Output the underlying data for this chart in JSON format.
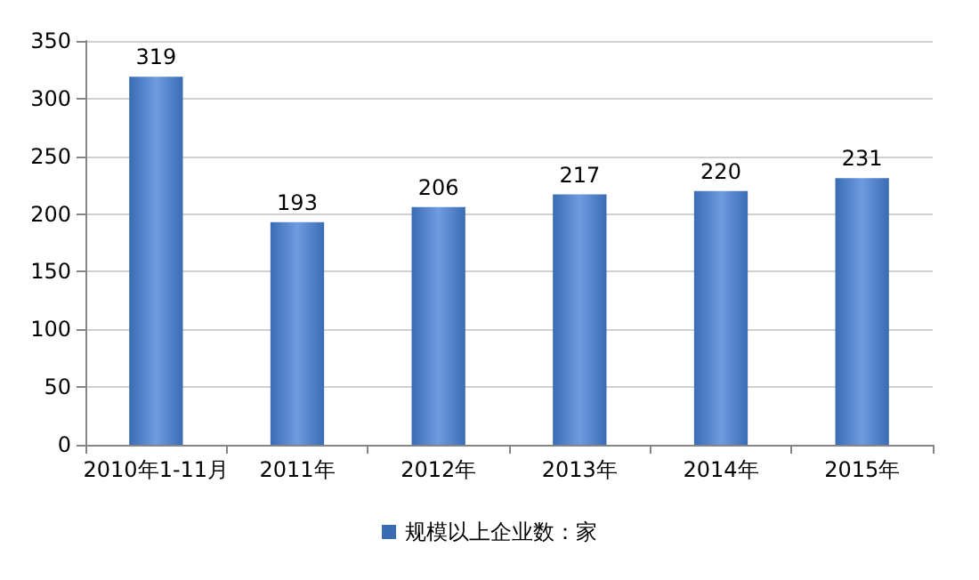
{
  "chart_data": {
    "type": "bar",
    "categories": [
      "2010年1-11月",
      "2011年",
      "2012年",
      "2013年",
      "2014年",
      "2015年"
    ],
    "series": [
      {
        "name": "规模以上企业数：家",
        "color": "#3a6cb4",
        "values": [
          319,
          193,
          206,
          217,
          220,
          231
        ]
      }
    ],
    "ylim": [
      0,
      350
    ],
    "yticks": [
      0,
      50,
      100,
      150,
      200,
      250,
      300,
      350
    ],
    "grid": "y",
    "legend": "bottom",
    "data_labels": true
  }
}
